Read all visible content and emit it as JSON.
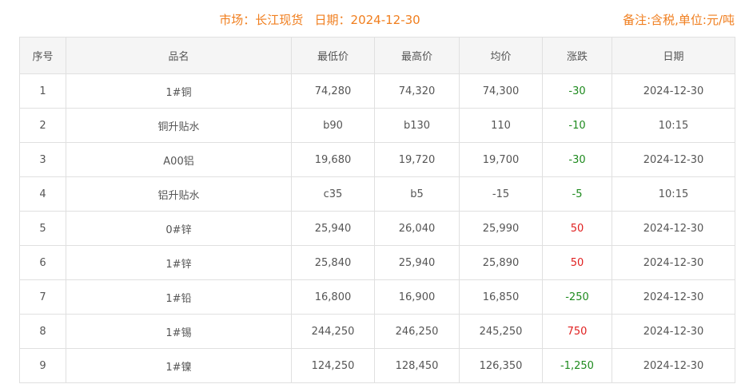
{
  "header": {
    "title": "市场：长江现货   日期：2024-12-30",
    "note": "备注:含税,单位:元/吨"
  },
  "colors": {
    "accent": "#f07e1e",
    "up": "#e02020",
    "down": "#1e8a1e"
  },
  "columns": [
    "序号",
    "品名",
    "最低价",
    "最高价",
    "均价",
    "涨跌",
    "日期"
  ],
  "rows": [
    {
      "no": "1",
      "name": "1#铜",
      "low": "74,280",
      "high": "74,320",
      "avg": "74,300",
      "change": "-30",
      "date": "2024-12-30"
    },
    {
      "no": "2",
      "name": "铜升贴水",
      "low": "b90",
      "high": "b130",
      "avg": "110",
      "change": "-10",
      "date": "10:15"
    },
    {
      "no": "3",
      "name": "A00铝",
      "low": "19,680",
      "high": "19,720",
      "avg": "19,700",
      "change": "-30",
      "date": "2024-12-30"
    },
    {
      "no": "4",
      "name": "铝升贴水",
      "low": "c35",
      "high": "b5",
      "avg": "-15",
      "change": "-5",
      "date": "10:15"
    },
    {
      "no": "5",
      "name": "0#锌",
      "low": "25,940",
      "high": "26,040",
      "avg": "25,990",
      "change": "50",
      "date": "2024-12-30"
    },
    {
      "no": "6",
      "name": "1#锌",
      "low": "25,840",
      "high": "25,940",
      "avg": "25,890",
      "change": "50",
      "date": "2024-12-30"
    },
    {
      "no": "7",
      "name": "1#铅",
      "low": "16,800",
      "high": "16,900",
      "avg": "16,850",
      "change": "-250",
      "date": "2024-12-30"
    },
    {
      "no": "8",
      "name": "1#锡",
      "low": "244,250",
      "high": "246,250",
      "avg": "245,250",
      "change": "750",
      "date": "2024-12-30"
    },
    {
      "no": "9",
      "name": "1#镍",
      "low": "124,250",
      "high": "128,450",
      "avg": "126,350",
      "change": "-1,250",
      "date": "2024-12-30"
    }
  ]
}
